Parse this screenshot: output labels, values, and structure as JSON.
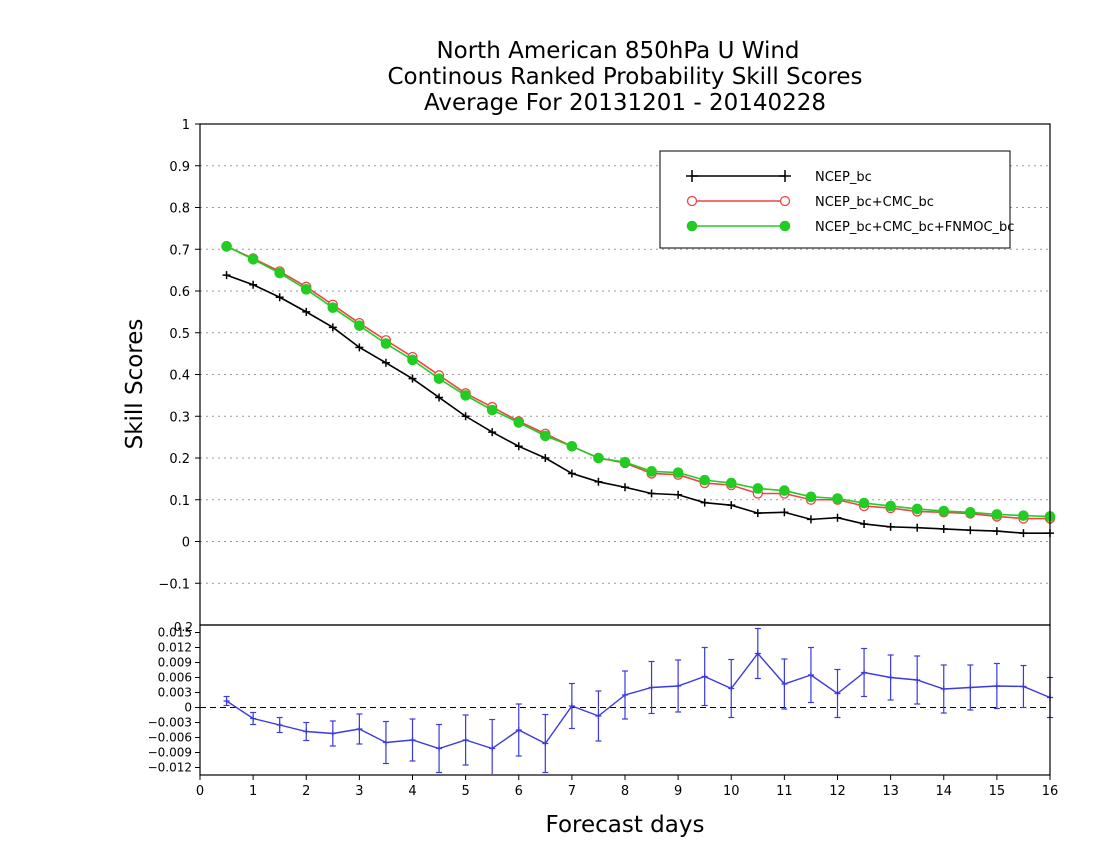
{
  "colors": {
    "ncep": "#000000",
    "ncep_cmc": "#ee4444",
    "ncep_cmc_fnmoc": "#22cc22",
    "diff": "#3a3add",
    "grid": "#999999"
  },
  "chart_data": [
    {
      "type": "line",
      "title": [
        "North American 850hPa U Wind",
        "Continous Ranked Probability Skill Scores",
        "Average For 20131201 - 20140228"
      ],
      "ylabel": "Skill Scores",
      "xlabel": "",
      "xlim": [
        0,
        16
      ],
      "ylim": [
        -0.2,
        1
      ],
      "yticks": [
        "1",
        "0.9",
        "0.8",
        "0.7",
        "0.6",
        "0.5",
        "0.4",
        "0.3",
        "0.2",
        "0.1",
        "0",
        "−0.1"
      ],
      "ytick_values": [
        1,
        0.9,
        0.8,
        0.7,
        0.6,
        0.5,
        0.4,
        0.3,
        0.2,
        0.1,
        0,
        -0.1
      ],
      "grid": true,
      "legend_position": "top-right",
      "x": [
        0.5,
        1,
        1.5,
        2,
        2.5,
        3,
        3.5,
        4,
        4.5,
        5,
        5.5,
        6,
        6.5,
        7,
        7.5,
        8,
        8.5,
        9,
        9.5,
        10,
        10.5,
        11,
        11.5,
        12,
        12.5,
        13,
        13.5,
        14,
        14.5,
        15,
        15.5,
        16
      ],
      "series": [
        {
          "name": "NCEP_bc",
          "marker": "plus",
          "values": [
            0.638,
            0.615,
            0.585,
            0.55,
            0.513,
            0.465,
            0.428,
            0.39,
            0.345,
            0.3,
            0.262,
            0.228,
            0.2,
            0.163,
            0.143,
            0.13,
            0.115,
            0.112,
            0.093,
            0.087,
            0.068,
            0.07,
            0.053,
            0.057,
            0.042,
            0.035,
            0.033,
            0.03,
            0.027,
            0.025,
            0.02,
            0.02
          ]
        },
        {
          "name": "NCEP_bc+CMC_bc",
          "marker": "open-circle",
          "values": [
            0.707,
            0.678,
            0.647,
            0.61,
            0.567,
            0.523,
            0.482,
            0.442,
            0.398,
            0.355,
            0.322,
            0.288,
            0.258,
            0.228,
            0.2,
            0.188,
            0.163,
            0.16,
            0.14,
            0.135,
            0.115,
            0.115,
            0.1,
            0.1,
            0.085,
            0.08,
            0.072,
            0.07,
            0.067,
            0.06,
            0.055,
            0.055
          ]
        },
        {
          "name": "NCEP_bc+CMC_bc+FNMOC_bc",
          "marker": "filled-circle",
          "values": [
            0.707,
            0.676,
            0.643,
            0.604,
            0.56,
            0.517,
            0.474,
            0.435,
            0.39,
            0.35,
            0.315,
            0.285,
            0.253,
            0.228,
            0.2,
            0.19,
            0.168,
            0.165,
            0.147,
            0.14,
            0.127,
            0.122,
            0.107,
            0.103,
            0.092,
            0.085,
            0.078,
            0.073,
            0.07,
            0.065,
            0.062,
            0.06
          ]
        }
      ]
    },
    {
      "type": "line",
      "xlabel": "Forecast days",
      "ylabel": "",
      "xlim": [
        0,
        16
      ],
      "ylim": [
        -0.0135,
        0.0165
      ],
      "xticks": [
        "0",
        "1",
        "2",
        "3",
        "4",
        "5",
        "6",
        "7",
        "8",
        "9",
        "10",
        "11",
        "12",
        "13",
        "14",
        "15",
        "16"
      ],
      "xtick_values": [
        0,
        1,
        2,
        3,
        4,
        5,
        6,
        7,
        8,
        9,
        10,
        11,
        12,
        13,
        14,
        15,
        16
      ],
      "yticks": [
        "0.015",
        "0.012",
        "0.009",
        "0.006",
        "0.003",
        "0",
        "−0.003",
        "−0.006",
        "−0.009",
        "−0.012"
      ],
      "ytick_values": [
        0.015,
        0.012,
        0.009,
        0.006,
        0.003,
        0,
        -0.003,
        -0.006,
        -0.009,
        -0.012
      ],
      "top_label": "0.2",
      "reference_line": 0,
      "x": [
        0.5,
        1,
        1.5,
        2,
        2.5,
        3,
        3.5,
        4,
        4.5,
        5,
        5.5,
        6,
        6.5,
        7,
        7.5,
        8,
        8.5,
        9,
        9.5,
        10,
        10.5,
        11,
        11.5,
        12,
        12.5,
        13,
        13.5,
        14,
        14.5,
        15,
        15.5,
        16
      ],
      "series": [
        {
          "marker": "plus",
          "values": [
            0.0013,
            -0.0022,
            -0.0035,
            -0.0048,
            -0.0052,
            -0.0043,
            -0.007,
            -0.0065,
            -0.0082,
            -0.0065,
            -0.0082,
            -0.0045,
            -0.0072,
            0.0003,
            -0.0017,
            0.0025,
            0.004,
            0.0043,
            0.0062,
            0.0038,
            0.0108,
            0.0047,
            0.0065,
            0.0028,
            0.007,
            0.006,
            0.0055,
            0.0037,
            0.004,
            0.0043,
            0.0042,
            0.002
          ],
          "error": [
            0.0009,
            0.0012,
            0.0015,
            0.0018,
            0.0025,
            0.003,
            0.0042,
            0.0042,
            0.0048,
            0.005,
            0.0058,
            0.0052,
            0.0058,
            0.0045,
            0.005,
            0.0048,
            0.0052,
            0.0052,
            0.0058,
            0.0058,
            0.005,
            0.005,
            0.0055,
            0.0048,
            0.0048,
            0.0045,
            0.0048,
            0.0048,
            0.0045,
            0.0045,
            0.0042,
            0.004
          ]
        }
      ]
    }
  ]
}
